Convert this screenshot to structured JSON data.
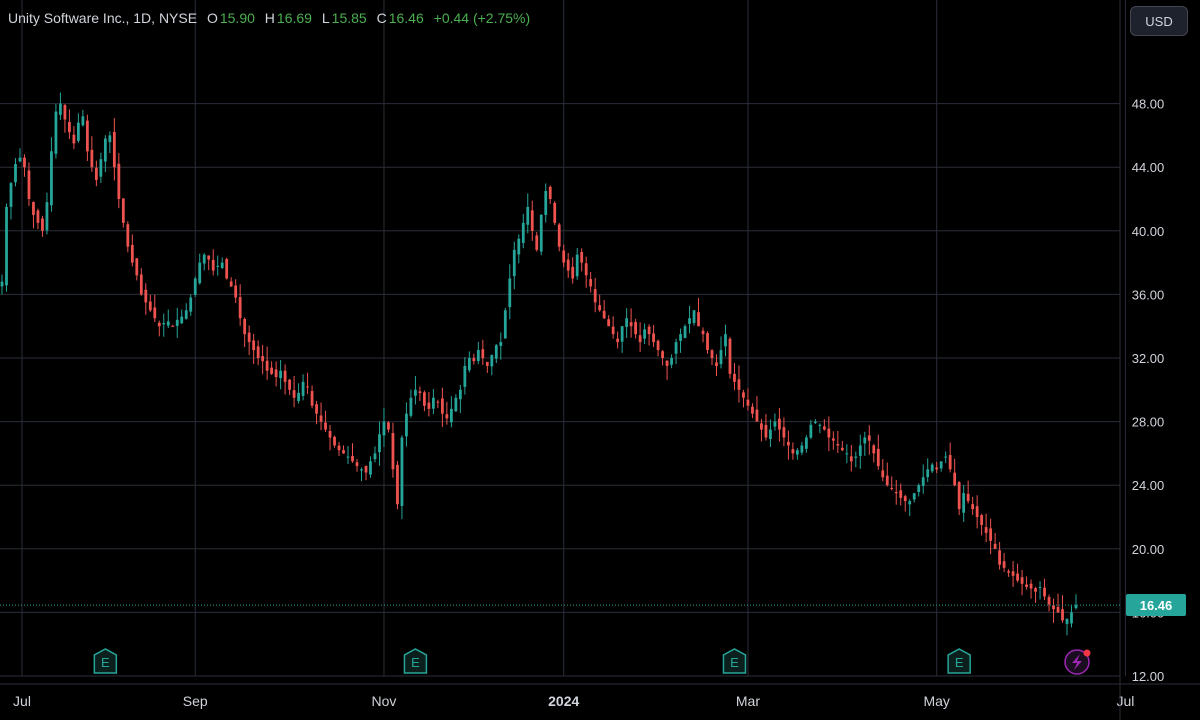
{
  "legend": {
    "name": "Unity Software Inc., 1D, NYSE",
    "open_label": "O",
    "open": "15.90",
    "high_label": "H",
    "high": "16.69",
    "low_label": "L",
    "low": "15.85",
    "close_label": "C",
    "close": "16.46",
    "change": "+0.44 (+2.75%)"
  },
  "currency_button": "USD",
  "last_price_tag": "16.46",
  "earnings_marker_label": "E",
  "colors": {
    "up": "#26a69a",
    "down": "#ef5350",
    "grid": "#2a2e39",
    "text": "#d1d4dc",
    "background": "#000000",
    "lightning": "#9c27b0"
  },
  "chart_data": {
    "type": "candlestick",
    "ticker": "NYSE",
    "interval": "1D",
    "y_ticks": [
      "12.00",
      "16.00",
      "20.00",
      "24.00",
      "28.00",
      "32.00",
      "36.00",
      "40.00",
      "44.00",
      "48.00"
    ],
    "ylim": [
      12,
      52
    ],
    "x_labels": [
      {
        "label": "Jul",
        "index": 0,
        "bold": false
      },
      {
        "label": "Sep",
        "index": 43,
        "bold": false
      },
      {
        "label": "Nov",
        "index": 85,
        "bold": false
      },
      {
        "label": "2024",
        "index": 125,
        "bold": true
      },
      {
        "label": "Mar",
        "index": 166,
        "bold": false
      },
      {
        "label": "May",
        "index": 208,
        "bold": false
      },
      {
        "label": "Jul",
        "index": 250,
        "bold": false
      }
    ],
    "earnings_at_index": [
      23,
      92,
      163,
      213
    ],
    "last_close": 16.46,
    "close_series": [
      36.8,
      41.5,
      43.0,
      44.2,
      44.6,
      44.0,
      42.0,
      41.0,
      40.5,
      40.0,
      41.8,
      45.0,
      47.5,
      48.0,
      47.0,
      46.2,
      45.5,
      46.8,
      47.2,
      45.0,
      44.0,
      43.2,
      44.5,
      45.8,
      46.0,
      44.0,
      42.0,
      40.5,
      39.0,
      38.0,
      37.2,
      36.0,
      35.5,
      35.0,
      34.5,
      34.0,
      34.2,
      34.3,
      34.0,
      34.4,
      34.6,
      35.0,
      35.8,
      37.0,
      38.0,
      38.5,
      38.2,
      37.5,
      37.8,
      38.0,
      37.0,
      36.5,
      35.8,
      34.5,
      33.5,
      33.0,
      32.5,
      32.0,
      31.8,
      31.2,
      31.0,
      30.8,
      31.2,
      30.5,
      30.0,
      29.5,
      29.8,
      30.5,
      30.2,
      29.0,
      28.5,
      28.0,
      27.5,
      27.0,
      26.5,
      26.2,
      26.0,
      25.8,
      25.5,
      25.2,
      25.0,
      24.8,
      25.5,
      26.0,
      27.2,
      28.0,
      27.5,
      25.0,
      22.8,
      27.0,
      28.5,
      29.5,
      30.0,
      29.8,
      29.0,
      28.8,
      29.5,
      29.2,
      28.5,
      28.2,
      28.8,
      29.5,
      30.0,
      31.5,
      32.0,
      31.8,
      32.5,
      32.0,
      31.5,
      32.2,
      32.8,
      33.0,
      35.0,
      37.0,
      38.8,
      39.5,
      40.5,
      41.5,
      40.0,
      38.8,
      41.0,
      42.5,
      42.0,
      40.5,
      39.0,
      38.0,
      37.5,
      37.0,
      38.5,
      38.0,
      37.2,
      36.5,
      35.5,
      35.0,
      34.5,
      34.0,
      33.5,
      33.0,
      34.0,
      34.5,
      34.0,
      33.5,
      33.0,
      33.8,
      33.5,
      33.0,
      32.5,
      32.0,
      31.5,
      32.0,
      33.0,
      33.5,
      34.0,
      34.5,
      35.0,
      34.0,
      33.5,
      32.5,
      32.0,
      31.5,
      32.5,
      33.5,
      31.0,
      30.5,
      30.0,
      29.5,
      29.0,
      28.5,
      28.0,
      27.5,
      27.0,
      27.5,
      28.0,
      27.5,
      27.0,
      26.5,
      26.0,
      26.2,
      26.5,
      27.0,
      27.8,
      28.0,
      27.8,
      27.5,
      27.0,
      26.8,
      26.5,
      26.2,
      26.0,
      25.5,
      25.8,
      26.5,
      27.0,
      26.8,
      26.0,
      25.2,
      24.5,
      24.0,
      23.8,
      23.5,
      23.2,
      23.0,
      23.0,
      23.5,
      24.0,
      24.5,
      25.0,
      25.3,
      25.0,
      25.5,
      25.8,
      25.0,
      24.0,
      22.5,
      23.5,
      23.0,
      22.5,
      22.0,
      21.5,
      21.0,
      20.5,
      20.0,
      19.0,
      18.8,
      18.5,
      18.3,
      18.0,
      17.8,
      17.6,
      17.5,
      17.3,
      17.6,
      17.0,
      16.5,
      16.2,
      16.0,
      15.5,
      15.6,
      16.0,
      16.46
    ]
  }
}
